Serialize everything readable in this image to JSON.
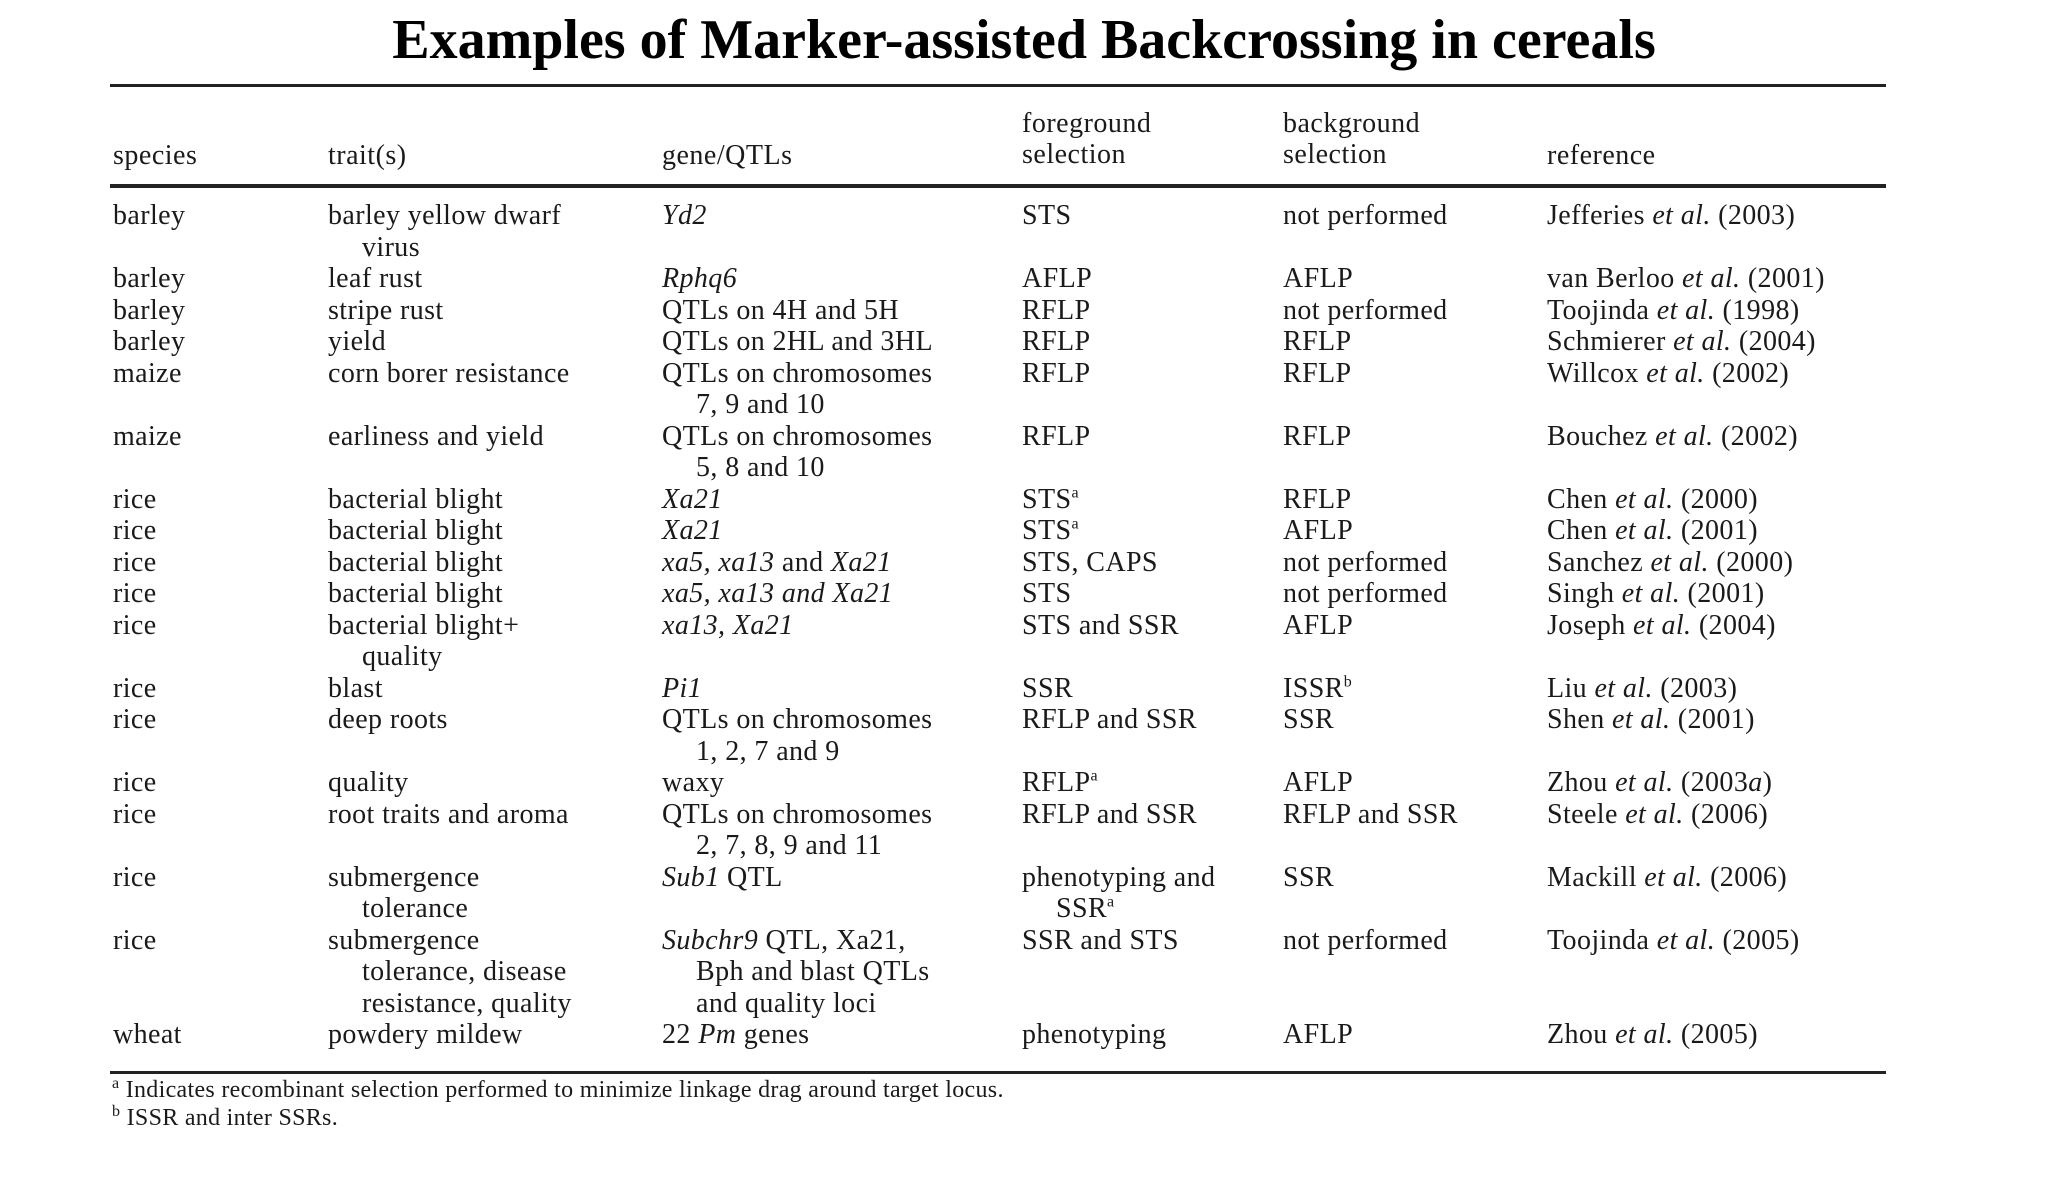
{
  "title": "Examples of Marker-assisted Backcrossing in cereals",
  "headers": {
    "species": "species",
    "trait": "trait(s)",
    "gene": "gene/QTLs",
    "fg_line1": "foreground",
    "fg_line2": "selection",
    "bg_line1": "background",
    "bg_line2": "selection",
    "reference": "reference"
  },
  "rows": [
    {
      "species": "barley",
      "trait": [
        "barley yellow dwarf",
        "virus"
      ],
      "gene": [
        "Yd2"
      ],
      "fg": [
        "STS"
      ],
      "bg": "not performed",
      "ref": [
        "Jefferies ",
        "et al.",
        " (2003)"
      ]
    },
    {
      "species": "barley",
      "trait": [
        "leaf rust"
      ],
      "gene": [
        "Rphq6"
      ],
      "fg": [
        "AFLP"
      ],
      "bg": "AFLP",
      "ref": [
        "van Berloo ",
        "et al.",
        " (2001)"
      ]
    },
    {
      "species": "barley",
      "trait": [
        "stripe rust"
      ],
      "gene": [
        "QTLs on 4H and 5H"
      ],
      "fg": [
        "RFLP"
      ],
      "bg": "not performed",
      "ref": [
        "Toojinda ",
        "et al.",
        " (1998)"
      ]
    },
    {
      "species": "barley",
      "trait": [
        "yield"
      ],
      "gene": [
        "QTLs on 2HL and 3HL"
      ],
      "fg": [
        "RFLP"
      ],
      "bg": "RFLP",
      "ref": [
        "Schmierer ",
        "et al.",
        " (2004)"
      ]
    },
    {
      "species": "maize",
      "trait": [
        "corn borer resistance"
      ],
      "gene": [
        "QTLs on chromosomes",
        "7, 9 and 10"
      ],
      "fg": [
        "RFLP"
      ],
      "bg": "RFLP",
      "ref": [
        "Willcox ",
        "et al.",
        " (2002)"
      ]
    },
    {
      "species": "maize",
      "trait": [
        "earliness and yield"
      ],
      "gene": [
        "QTLs on chromosomes",
        "5, 8 and 10"
      ],
      "fg": [
        "RFLP"
      ],
      "bg": "RFLP",
      "ref": [
        "Bouchez ",
        "et al.",
        " (2002)"
      ]
    },
    {
      "species": "rice",
      "trait": [
        "bacterial blight"
      ],
      "gene": [
        "Xa21"
      ],
      "fg": [
        "STS",
        "a"
      ],
      "bg": "RFLP",
      "ref": [
        "Chen ",
        "et al.",
        " (2000)"
      ]
    },
    {
      "species": "rice",
      "trait": [
        "bacterial blight"
      ],
      "gene": [
        "Xa21"
      ],
      "fg": [
        "STS",
        "a"
      ],
      "bg": "AFLP",
      "ref": [
        "Chen ",
        "et al.",
        " (2001)"
      ]
    },
    {
      "species": "rice",
      "trait": [
        "bacterial blight"
      ],
      "gene": [
        "xa5, xa13",
        " and ",
        "Xa21"
      ],
      "fg": [
        "STS, CAPS"
      ],
      "bg": "not performed",
      "ref": [
        "Sanchez ",
        "et al.",
        " (2000)"
      ]
    },
    {
      "species": "rice",
      "trait": [
        "bacterial blight"
      ],
      "gene": [
        "xa5, xa13 and Xa21"
      ],
      "fg": [
        "STS"
      ],
      "bg": "not performed",
      "ref": [
        "Singh ",
        "et al.",
        " (2001)"
      ]
    },
    {
      "species": "rice",
      "trait": [
        "bacterial blight+",
        "quality"
      ],
      "gene": [
        "xa13, Xa21"
      ],
      "fg": [
        "STS and SSR"
      ],
      "bg": "AFLP",
      "ref": [
        "Joseph ",
        "et al.",
        " (2004)"
      ]
    },
    {
      "species": "rice",
      "trait": [
        "blast"
      ],
      "gene": [
        "Pi1"
      ],
      "fg": [
        "SSR"
      ],
      "bg": "ISSR",
      "bg_sup": "b",
      "ref": [
        "Liu ",
        "et al.",
        " (2003)"
      ]
    },
    {
      "species": "rice",
      "trait": [
        "deep roots"
      ],
      "gene": [
        "QTLs on chromosomes",
        "1, 2, 7 and 9"
      ],
      "fg": [
        "RFLP and SSR"
      ],
      "bg": "SSR",
      "ref": [
        "Shen ",
        "et al.",
        " (2001)"
      ]
    },
    {
      "species": "rice",
      "trait": [
        "quality"
      ],
      "gene": [
        "waxy"
      ],
      "fg": [
        "RFLP",
        "a"
      ],
      "bg": "AFLP",
      "ref": [
        "Zhou ",
        "et al.",
        " (2003",
        "a",
        ")"
      ]
    },
    {
      "species": "rice",
      "trait": [
        "root traits and aroma"
      ],
      "gene": [
        "QTLs on chromosomes",
        "2, 7, 8, 9 and 11"
      ],
      "fg": [
        "RFLP and SSR"
      ],
      "bg": "RFLP and SSR",
      "ref": [
        "Steele ",
        "et al.",
        " (2006)"
      ]
    },
    {
      "species": "rice",
      "trait": [
        "submergence",
        "tolerance"
      ],
      "gene": [
        "Sub1",
        " QTL"
      ],
      "fg": [
        "phenotyping and",
        "SSR",
        "a"
      ],
      "bg": "SSR",
      "ref": [
        "Mackill ",
        "et al.",
        " (2006)"
      ]
    },
    {
      "species": "rice",
      "trait": [
        "submergence",
        "tolerance, disease",
        "resistance, quality"
      ],
      "gene": [
        "Subchr9",
        " QTL, Xa21,",
        "Bph and blast QTLs",
        "and quality loci"
      ],
      "fg": [
        "SSR and STS"
      ],
      "bg": "not performed",
      "ref": [
        "Toojinda ",
        "et al.",
        " (2005)"
      ]
    },
    {
      "species": "wheat",
      "trait": [
        "powdery mildew"
      ],
      "gene": [
        "22 ",
        "Pm",
        " genes"
      ],
      "fg": [
        "phenotyping"
      ],
      "bg": "AFLP",
      "ref": [
        "Zhou ",
        "et al.",
        " (2005)"
      ]
    }
  ],
  "footnotes": {
    "a_mark": "a",
    "a_text": "Indicates recombinant selection performed to minimize linkage drag around target locus.",
    "b_mark": "b",
    "b_text": "ISSR and inter SSRs."
  }
}
